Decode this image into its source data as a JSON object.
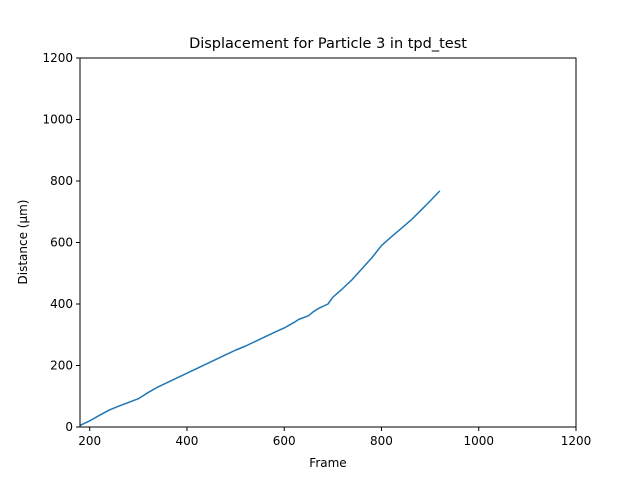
{
  "chart_data": {
    "type": "line",
    "title": "Displacement for Particle 3 in tpd_test",
    "xlabel": "Frame",
    "ylabel": "Distance (µm)",
    "xlim": [
      180,
      1200
    ],
    "ylim": [
      0,
      1200
    ],
    "xticks": [
      200,
      400,
      600,
      800,
      1000,
      1200
    ],
    "yticks": [
      0,
      200,
      400,
      600,
      800,
      1000,
      1200
    ],
    "grid": false,
    "colors": {
      "line": "#1f77b4",
      "axes": "#000000"
    },
    "series": [
      {
        "x": [
          180,
          200,
          220,
          240,
          260,
          280,
          300,
          310,
          320,
          340,
          360,
          380,
          400,
          420,
          440,
          460,
          480,
          500,
          520,
          540,
          560,
          580,
          600,
          620,
          630,
          650,
          660,
          670,
          690,
          700,
          720,
          740,
          760,
          780,
          800,
          820,
          840,
          860,
          880,
          900,
          920
        ],
        "y": [
          5,
          20,
          38,
          55,
          68,
          80,
          92,
          102,
          112,
          130,
          145,
          160,
          175,
          190,
          205,
          220,
          235,
          250,
          263,
          278,
          293,
          308,
          322,
          340,
          350,
          362,
          375,
          385,
          400,
          422,
          450,
          480,
          515,
          550,
          590,
          618,
          645,
          672,
          703,
          735,
          768
        ]
      }
    ]
  }
}
